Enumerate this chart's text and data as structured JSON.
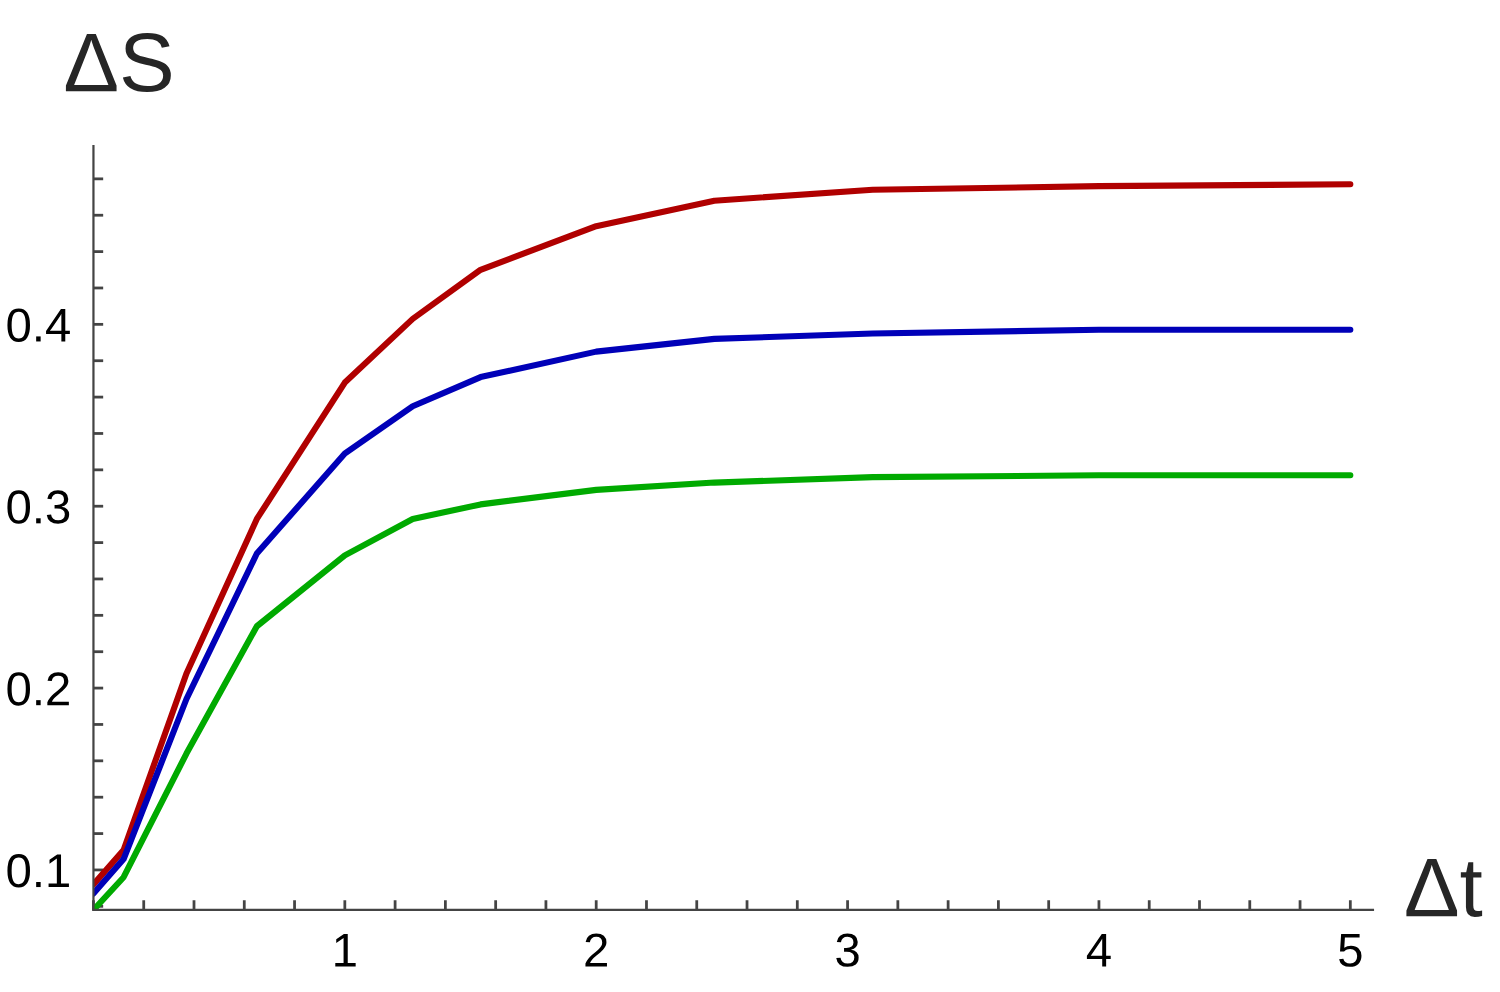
{
  "chart_data": {
    "type": "line",
    "xlabel": "Δt",
    "ylabel": "ΔS",
    "x": [
      0,
      0.12,
      0.37,
      0.65,
      1.0,
      1.27,
      1.54,
      2.0,
      2.47,
      3.1,
      4.0,
      5.0
    ],
    "series": [
      {
        "color": "#b00000",
        "values": [
          0.092,
          0.111,
          0.208,
          0.293,
          0.368,
          0.403,
          0.43,
          0.454,
          0.468,
          0.474,
          0.476,
          0.477
        ]
      },
      {
        "color": "#0000b8",
        "values": [
          0.087,
          0.106,
          0.194,
          0.274,
          0.329,
          0.355,
          0.371,
          0.385,
          0.392,
          0.395,
          0.397,
          0.397
        ]
      },
      {
        "color": "#00aa00",
        "values": [
          0.078,
          0.096,
          0.164,
          0.234,
          0.273,
          0.293,
          0.301,
          0.309,
          0.313,
          0.316,
          0.317,
          0.317
        ]
      }
    ],
    "xlim": [
      0,
      5.09
    ],
    "ylim": [
      0.078,
      0.498
    ],
    "xticks": [
      {
        "value": 0,
        "label": null
      },
      {
        "value": 0.2,
        "label": null
      },
      {
        "value": 0.4,
        "label": null
      },
      {
        "value": 0.6,
        "label": null
      },
      {
        "value": 0.8,
        "label": null
      },
      1,
      {
        "value": 1.2,
        "label": null
      },
      {
        "value": 1.4,
        "label": null
      },
      {
        "value": 1.6,
        "label": null
      },
      {
        "value": 1.8,
        "label": null
      },
      2,
      {
        "value": 2.2,
        "label": null
      },
      {
        "value": 2.4,
        "label": null
      },
      {
        "value": 2.6,
        "label": null
      },
      {
        "value": 2.8,
        "label": null
      },
      3,
      {
        "value": 3.2,
        "label": null
      },
      {
        "value": 3.4,
        "label": null
      },
      {
        "value": 3.6,
        "label": null
      },
      {
        "value": 3.8,
        "label": null
      },
      4,
      {
        "value": 4.2,
        "label": null
      },
      {
        "value": 4.4,
        "label": null
      },
      {
        "value": 4.6,
        "label": null
      },
      {
        "value": 4.8,
        "label": null
      },
      5
    ],
    "yticks": [
      {
        "value": 0.08,
        "label": null
      },
      0.1,
      {
        "value": 0.12,
        "label": null
      },
      {
        "value": 0.14,
        "label": null
      },
      {
        "value": 0.16,
        "label": null
      },
      {
        "value": 0.18,
        "label": null
      },
      0.2,
      {
        "value": 0.22,
        "label": null
      },
      {
        "value": 0.24,
        "label": null
      },
      {
        "value": 0.26,
        "label": null
      },
      {
        "value": 0.28,
        "label": null
      },
      0.3,
      {
        "value": 0.32,
        "label": null
      },
      {
        "value": 0.34,
        "label": null
      },
      {
        "value": 0.36,
        "label": null
      },
      {
        "value": 0.38,
        "label": null
      },
      0.4,
      {
        "value": 0.42,
        "label": null
      },
      {
        "value": 0.44,
        "label": null
      },
      {
        "value": 0.46,
        "label": null
      },
      {
        "value": 0.48,
        "label": null
      }
    ],
    "grid": false,
    "legend": false
  }
}
